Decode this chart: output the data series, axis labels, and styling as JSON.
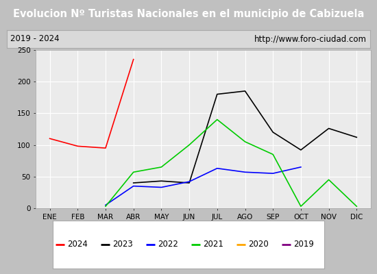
{
  "title": "Evolucion Nº Turistas Nacionales en el municipio de Cabizuela",
  "subtitle_left": "2019 - 2024",
  "subtitle_right": "http://www.foro-ciudad.com",
  "months": [
    "ENE",
    "FEB",
    "MAR",
    "ABR",
    "MAY",
    "JUN",
    "JUL",
    "AGO",
    "SEP",
    "OCT",
    "NOV",
    "DIC"
  ],
  "series": {
    "2024": {
      "color": "#ff0000",
      "data": [
        110,
        98,
        95,
        235,
        null,
        null,
        null,
        null,
        null,
        null,
        null,
        null
      ]
    },
    "2023": {
      "color": "#000000",
      "data": [
        null,
        null,
        null,
        40,
        43,
        40,
        180,
        185,
        120,
        92,
        126,
        112
      ]
    },
    "2022": {
      "color": "#0000ff",
      "data": [
        null,
        null,
        5,
        35,
        33,
        42,
        63,
        57,
        55,
        65,
        null,
        null
      ]
    },
    "2021": {
      "color": "#00cc00",
      "data": [
        null,
        null,
        3,
        57,
        65,
        100,
        140,
        105,
        85,
        3,
        45,
        3
      ]
    },
    "2020": {
      "color": "#ffa500",
      "data": [
        null,
        null,
        null,
        null,
        null,
        null,
        null,
        null,
        null,
        null,
        null,
        null
      ]
    },
    "2019": {
      "color": "#800080",
      "data": [
        null,
        null,
        null,
        null,
        null,
        null,
        null,
        null,
        null,
        null,
        null,
        null
      ]
    }
  },
  "ylim": [
    0,
    250
  ],
  "yticks": [
    0,
    50,
    100,
    150,
    200,
    250
  ],
  "title_bg_color": "#4472c4",
  "title_text_color": "#ffffff",
  "subtitle_bg_color": "#d9d9d9",
  "plot_bg_color": "#ebebeb",
  "grid_color": "#ffffff",
  "border_color": "#aaaaaa",
  "legend_order": [
    "2024",
    "2023",
    "2022",
    "2021",
    "2020",
    "2019"
  ],
  "fig_bg_color": "#c0c0c0"
}
